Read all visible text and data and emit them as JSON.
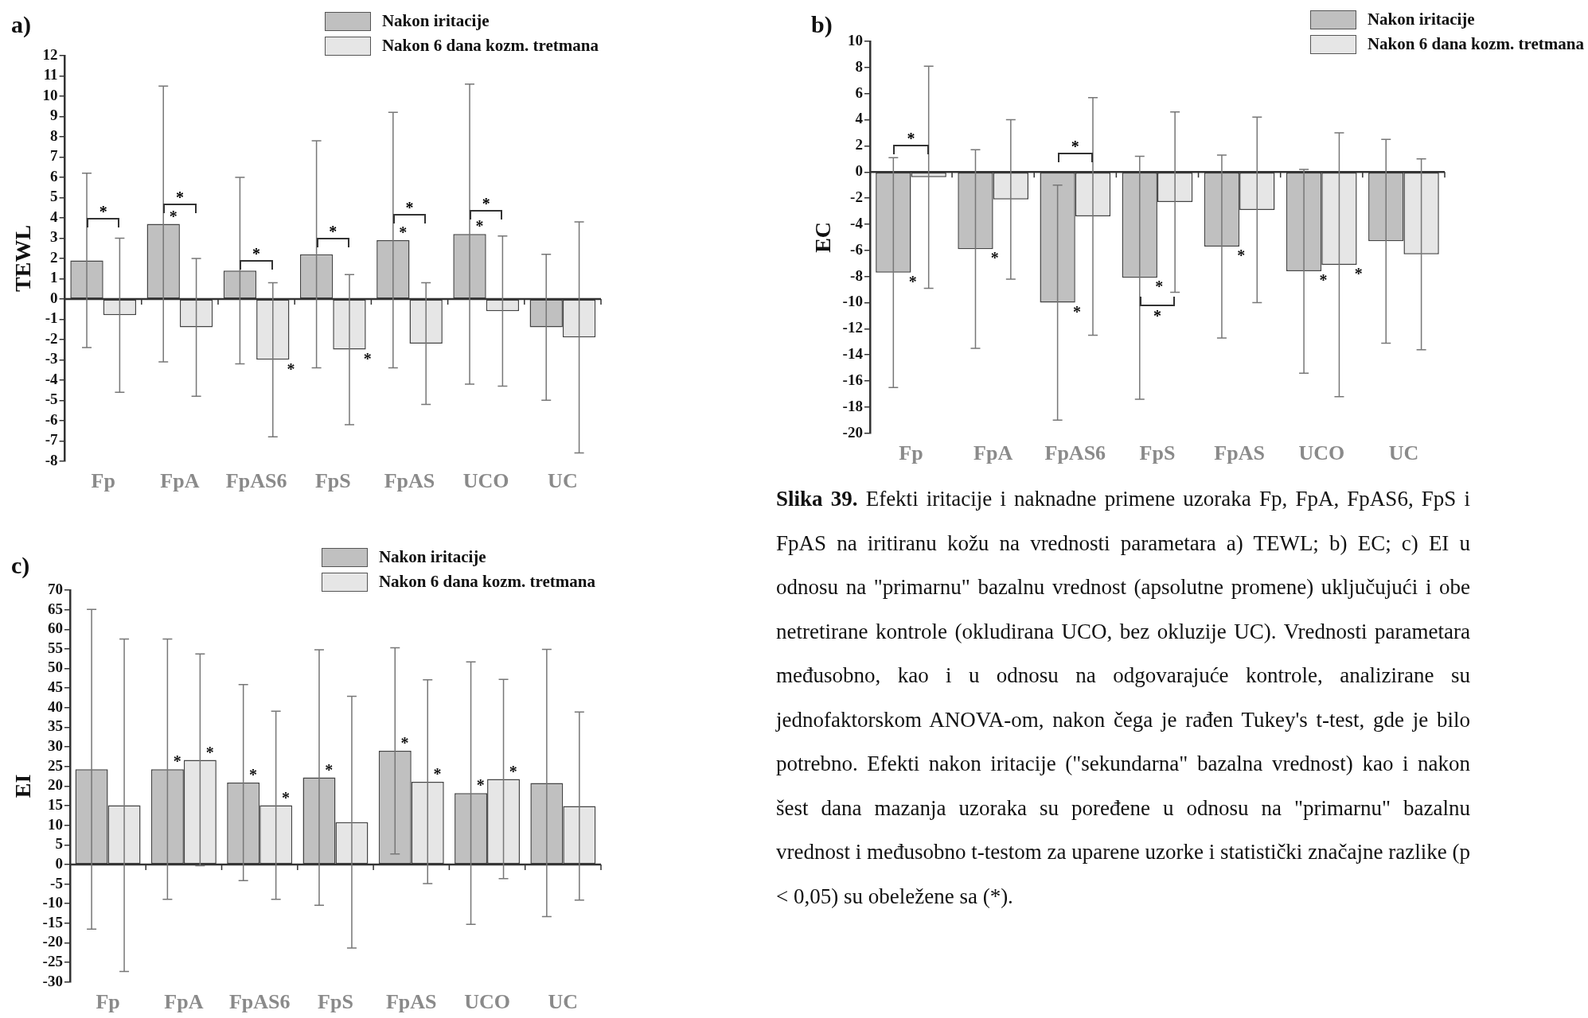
{
  "chart_data": [
    {
      "type": "bar",
      "title": "a)",
      "ylabel": "TEWL",
      "categories": [
        "Fp",
        "FpA",
        "FpAS6",
        "FpS",
        "FpAS",
        "UCO",
        "UC"
      ],
      "ylim": [
        -8,
        12
      ],
      "yticks": [
        -8,
        -7,
        -6,
        -5,
        -4,
        -3,
        -2,
        -1,
        0,
        1,
        2,
        3,
        4,
        5,
        6,
        7,
        8,
        9,
        10,
        11,
        12
      ],
      "legend": "top right",
      "series": [
        {
          "name": "Nakon iritacije",
          "color": "#c0c0c0",
          "values": [
            1.9,
            3.7,
            1.4,
            2.2,
            2.9,
            3.2,
            -1.4
          ],
          "errors": [
            4.3,
            6.8,
            4.6,
            5.6,
            6.3,
            7.4,
            3.6
          ]
        },
        {
          "name": "Nakon 6 dana kozm. tretmana",
          "color": "#e6e6e6",
          "values": [
            -0.8,
            -1.4,
            -3.0,
            -2.5,
            -2.2,
            -0.6,
            -1.9
          ],
          "errors": [
            3.8,
            3.4,
            3.8,
            3.7,
            3.0,
            3.7,
            5.7
          ]
        }
      ],
      "annotations": [
        "*",
        {
          "text": "*",
          "x": "FpA",
          "y": 3.7
        },
        "*",
        "*",
        {
          "text": "*",
          "x": "FpAS6",
          "y": -3.0
        },
        "*",
        {
          "text": "*",
          "x": "FpS",
          "y": -2.5
        },
        {
          "text": "*",
          "x": "FpAS",
          "y": 2.9
        },
        "*",
        {
          "text": "*",
          "x": "UCO",
          "y": 3.2
        },
        "*"
      ]
    },
    {
      "type": "bar",
      "title": "b)",
      "ylabel": "EC",
      "categories": [
        "Fp",
        "FpA",
        "FpAS6",
        "FpS",
        "FpAS",
        "UCO",
        "UC"
      ],
      "ylim": [
        -20,
        10
      ],
      "yticks": [
        -20,
        -18,
        -16,
        -14,
        -12,
        -10,
        -8,
        -6,
        -4,
        -2,
        0,
        2,
        4,
        6,
        8,
        10
      ],
      "legend": "top right",
      "series": [
        {
          "name": "Nakon iritacije",
          "color": "#c0c0c0",
          "values": [
            -7.7,
            -5.9,
            -10.0,
            -8.1,
            -5.7,
            -7.6,
            -5.3
          ],
          "errors": [
            8.8,
            7.6,
            9.0,
            9.3,
            7.0,
            7.8,
            7.8
          ]
        },
        {
          "name": "Nakon 6 dana kozm. tretmana",
          "color": "#e6e6e6",
          "values": [
            -0.4,
            -2.1,
            -3.4,
            -2.3,
            -2.9,
            -7.1,
            -6.3
          ],
          "errors": [
            8.5,
            6.1,
            9.1,
            6.9,
            7.1,
            10.1,
            7.3
          ]
        }
      ],
      "annotations": [
        {
          "text": "*",
          "x": "Fp",
          "y": -7.7
        },
        "*",
        {
          "text": "*",
          "x": "FpA",
          "y": -5.9
        },
        {
          "text": "*",
          "x": "FpAS6",
          "y": -10.0
        },
        "*",
        {
          "text": "*",
          "x": "FpS",
          "y": -8.1
        },
        "*",
        {
          "text": "*",
          "x": "FpAS",
          "y": -5.7
        },
        {
          "text": "*",
          "x": "UCO",
          "y": -7.6
        },
        {
          "text": "*",
          "x": "UCO",
          "y": -7.1
        }
      ]
    },
    {
      "type": "bar",
      "title": "c)",
      "ylabel": "EI",
      "categories": [
        "Fp",
        "FpA",
        "FpAS6",
        "FpS",
        "FpAS",
        "UCO",
        "UC"
      ],
      "ylim": [
        -30,
        70
      ],
      "yticks": [
        -30,
        -25,
        -20,
        -15,
        -10,
        -5,
        0,
        5,
        10,
        15,
        20,
        25,
        30,
        35,
        40,
        45,
        50,
        55,
        60,
        65,
        70
      ],
      "legend": "top right",
      "series": [
        {
          "name": "Nakon iritacije",
          "color": "#c0c0c0",
          "values": [
            24.3,
            24.3,
            20.9,
            22.2,
            29.0,
            18.2,
            20.8
          ],
          "errors": [
            40.8,
            33.2,
            25.0,
            32.6,
            26.3,
            33.5,
            34.1
          ]
        },
        {
          "name": "Nakon 6 dana kozm. tretmana",
          "color": "#e6e6e6",
          "values": [
            15.1,
            26.7,
            15.1,
            10.8,
            21.1,
            21.8,
            14.9
          ],
          "errors": [
            42.4,
            27.0,
            24.0,
            32.1,
            26.0,
            25.4,
            24.0
          ]
        }
      ],
      "annotations": [
        {
          "text": "*",
          "x": "FpA",
          "y": 24.3
        },
        {
          "text": "*",
          "x": "FpA",
          "y": 26.7
        },
        {
          "text": "*",
          "x": "FpAS6",
          "y": 20.9
        },
        {
          "text": "*",
          "x": "FpAS6",
          "y": 15.1
        },
        {
          "text": "*",
          "x": "FpS",
          "y": 22.2
        },
        {
          "text": "*",
          "x": "FpAS",
          "y": 29.0
        },
        {
          "text": "*",
          "x": "FpAS",
          "y": 21.1
        },
        {
          "text": "*",
          "x": "UCO",
          "y": 18.2
        },
        {
          "text": "*",
          "x": "UCO",
          "y": 21.8
        }
      ]
    },
    {
      "type": "other",
      "title": "Slika 39.",
      "annotations": [
        "Efekti iritacije i naknadne primene uzoraka Fp, FpA, FpAS6, FpS i FpAS na iritiranu kožu na vrednosti parametara a) TEWL; b) EC; c) EI u odnosu na \"primarnu\" bazalnu vrednost (apsolutne promene) uključujući i obe netretirane kontrole (okludirana UCO, bez okluzije UC). Vrednosti parametara međusobno, kao i u odnosu na odgovarajuće kontrole, analizirane su jednofaktorskom ANOVA-om, nakon čega je rađen Tukey's t-test, gde je bilo potrebno. Efekti nakon iritacije (\"sekundarna\" bazalna vrednost) kao i nakon šest dana mazanja uzoraka su poređene u odnosu na \"primarnu\" bazalnu vrednost i međusobno t-testom za uparene uzorke i statistički značajne razlike (p < 0,05) su obeležene sa (*)."
      ]
    }
  ]
}
